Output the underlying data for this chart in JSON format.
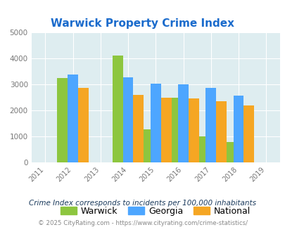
{
  "title": "Warwick Property Crime Index",
  "years": [
    2011,
    2012,
    2013,
    2014,
    2015,
    2016,
    2017,
    2018,
    2019
  ],
  "data_years": [
    2012,
    2014,
    2015,
    2016,
    2017,
    2018
  ],
  "warwick": [
    3250,
    4100,
    1270,
    2490,
    1010,
    790
  ],
  "georgia": [
    3380,
    3270,
    3040,
    3000,
    2870,
    2580
  ],
  "national": [
    2870,
    2610,
    2480,
    2470,
    2360,
    2190
  ],
  "warwick_color": "#8dc63f",
  "georgia_color": "#4da6ff",
  "national_color": "#f5a623",
  "ylim": [
    0,
    5000
  ],
  "yticks": [
    0,
    1000,
    2000,
    3000,
    4000,
    5000
  ],
  "bg_color": "#deedf0",
  "fig_bg": "#ffffff",
  "bar_width": 0.38,
  "xlabel_color": "#777777",
  "title_color": "#1a6bcc",
  "legend_labels": [
    "Warwick",
    "Georgia",
    "National"
  ],
  "footnote1": "Crime Index corresponds to incidents per 100,000 inhabitants",
  "footnote2": "© 2025 CityRating.com - https://www.cityrating.com/crime-statistics/",
  "footnote1_color": "#1a3a5c",
  "footnote2_color": "#888888"
}
